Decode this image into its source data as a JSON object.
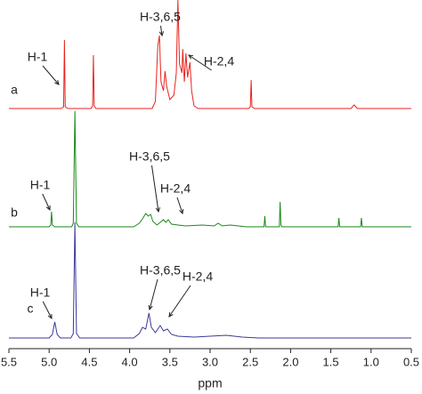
{
  "chart_data": {
    "type": "line",
    "x_label": "ppm",
    "xlim": [
      5.5,
      0.5
    ],
    "xticks": [
      5.5,
      {
        "value": 5,
        "label": "5.0"
      },
      4.5,
      {
        "value": 4,
        "label": "4.0"
      },
      3.5,
      {
        "value": 3,
        "label": "3.0"
      },
      2.5,
      {
        "value": 2,
        "label": "2.0"
      },
      1.5,
      {
        "value": 1,
        "label": "1.0"
      },
      0.5
    ],
    "ylim": [
      0,
      130
    ],
    "series": [
      {
        "name": "a",
        "color": "#e8231f",
        "annotations": [
          "H-1",
          "H-3,6,5",
          "H-2,4"
        ],
        "x": [
          5.5,
          4.85,
          4.82,
          4.81,
          4.8,
          4.77,
          4.48,
          4.46,
          4.45,
          4.44,
          4.42,
          3.72,
          3.68,
          3.65,
          3.63,
          3.61,
          3.58,
          3.56,
          3.54,
          3.5,
          3.45,
          3.42,
          3.4,
          3.38,
          3.35,
          3.34,
          3.32,
          3.3,
          3.28,
          3.25,
          3.23,
          3.2,
          3.15,
          2.52,
          2.5,
          2.49,
          2.48,
          2.45,
          1.25,
          1.21,
          1.17,
          0.5
        ],
        "values": [
          0,
          0,
          2,
          77,
          2,
          0,
          0,
          3,
          60,
          3,
          0,
          0,
          8,
          70,
          82,
          30,
          20,
          42,
          25,
          10,
          15,
          40,
          122,
          50,
          40,
          67,
          30,
          62,
          35,
          52,
          20,
          3,
          0,
          0,
          2,
          32,
          2,
          0,
          0,
          4,
          0,
          0
        ]
      },
      {
        "name": "b",
        "color": "#1a8a1a",
        "annotations": [
          "H-1",
          "H-3,6,5",
          "H-2,4"
        ],
        "x": [
          5.5,
          5.0,
          4.98,
          4.97,
          4.96,
          4.93,
          4.72,
          4.7,
          4.68,
          4.66,
          4.63,
          3.95,
          3.88,
          3.84,
          3.8,
          3.77,
          3.74,
          3.71,
          3.66,
          3.58,
          3.55,
          3.52,
          3.48,
          3.4,
          3.3,
          3.1,
          2.95,
          2.9,
          2.85,
          2.75,
          2.65,
          2.55,
          2.33,
          2.32,
          2.31,
          2.14,
          2.13,
          2.12,
          2.11,
          1.41,
          1.4,
          1.39,
          1.13,
          1.12,
          1.11,
          0.5
        ],
        "values": [
          0,
          0,
          2,
          17,
          2,
          0,
          0,
          4,
          130,
          4,
          0,
          0,
          4,
          9,
          15,
          12,
          14,
          6,
          2,
          8,
          5,
          8,
          3,
          2,
          1,
          2,
          1,
          4,
          1,
          2,
          1,
          0,
          0,
          12,
          0,
          0,
          28,
          2,
          0,
          0,
          10,
          0,
          0,
          10,
          0,
          0
        ]
      },
      {
        "name": "c",
        "color": "#3a3a9a",
        "annotations": [
          "H-1",
          "H-3,6,5",
          "H-2,4"
        ],
        "x": [
          5.5,
          5.0,
          4.96,
          4.93,
          4.9,
          4.86,
          4.73,
          4.7,
          4.68,
          4.66,
          4.62,
          3.95,
          3.88,
          3.84,
          3.8,
          3.76,
          3.73,
          3.68,
          3.62,
          3.58,
          3.53,
          3.48,
          3.4,
          3.2,
          3.0,
          2.8,
          2.6,
          2.4,
          0.5
        ],
        "values": [
          0,
          0,
          4,
          18,
          4,
          0,
          0,
          5,
          130,
          5,
          0,
          0,
          5,
          12,
          10,
          28,
          12,
          6,
          14,
          8,
          10,
          4,
          2,
          1,
          2,
          3,
          1,
          0,
          0
        ]
      }
    ]
  }
}
